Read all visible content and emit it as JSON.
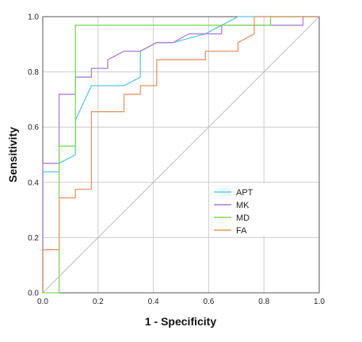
{
  "chart_data": {
    "type": "line",
    "title": "",
    "xlabel": "1 - Specificity",
    "ylabel": "Sensitivity",
    "xlim": [
      0,
      1
    ],
    "ylim": [
      0,
      1
    ],
    "xticks": [
      "0.0",
      "0.2",
      "0.4",
      "0.6",
      "0.8",
      "1.0"
    ],
    "yticks": [
      "0.0",
      "0.2",
      "0.4",
      "0.6",
      "0.8",
      "1.0"
    ],
    "grid": true,
    "diagonal_reference": true,
    "legend_position": "lower-right",
    "series": [
      {
        "name": "APT",
        "color": "#5bc8dd",
        "x": [
          0,
          0,
          0.059,
          0.059,
          0.118,
          0.118,
          0.176,
          0.176,
          0.294,
          0.353,
          0.353,
          0.412,
          0.471,
          0.588,
          0.706,
          0.765,
          0.824,
          0.882,
          1.0
        ],
        "y": [
          0,
          0.438,
          0.438,
          0.469,
          0.5,
          0.625,
          0.75,
          0.75,
          0.75,
          0.781,
          0.875,
          0.906,
          0.906,
          0.938,
          1.0,
          1.0,
          1.0,
          1.0,
          1.0
        ]
      },
      {
        "name": "MK",
        "color": "#a97fd6",
        "x": [
          0,
          0,
          0.059,
          0.059,
          0.118,
          0.118,
          0.176,
          0.176,
          0.235,
          0.235,
          0.294,
          0.353,
          0.412,
          0.471,
          0.529,
          0.647,
          0.647,
          0.765,
          0.941,
          0.941,
          1.0
        ],
        "y": [
          0,
          0.469,
          0.469,
          0.719,
          0.719,
          0.781,
          0.781,
          0.813,
          0.813,
          0.844,
          0.875,
          0.875,
          0.906,
          0.906,
          0.938,
          0.938,
          0.969,
          0.969,
          0.969,
          1.0,
          1.0
        ]
      },
      {
        "name": "MD",
        "color": "#7ed957",
        "x": [
          0,
          0.059,
          0.059,
          0.118,
          0.118,
          0.824,
          0.824,
          1.0
        ],
        "y": [
          0,
          0,
          0.531,
          0.531,
          0.969,
          0.969,
          1.0,
          1.0
        ]
      },
      {
        "name": "FA",
        "color": "#e8956a",
        "x": [
          0,
          0,
          0.059,
          0.059,
          0.118,
          0.118,
          0.176,
          0.176,
          0.294,
          0.294,
          0.353,
          0.353,
          0.412,
          0.412,
          0.588,
          0.588,
          0.706,
          0.706,
          0.765,
          0.765,
          1.0
        ],
        "y": [
          0,
          0.156,
          0.156,
          0.344,
          0.344,
          0.375,
          0.375,
          0.656,
          0.656,
          0.719,
          0.719,
          0.75,
          0.75,
          0.844,
          0.844,
          0.875,
          0.875,
          0.906,
          0.938,
          1.0,
          1.0
        ]
      }
    ]
  }
}
